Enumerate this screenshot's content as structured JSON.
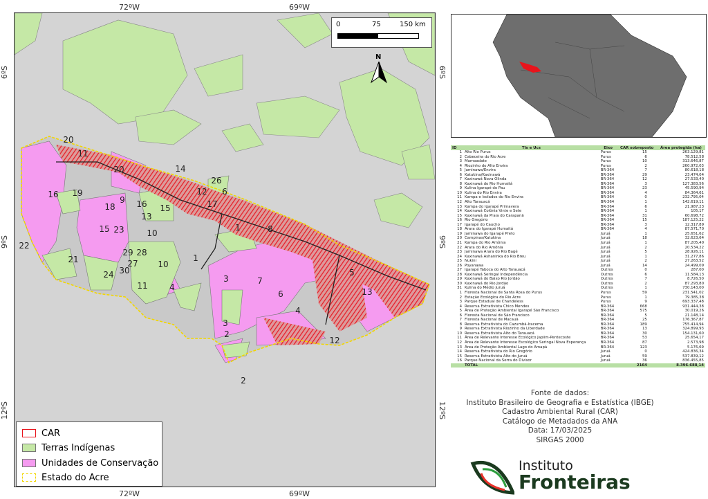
{
  "map": {
    "coords": {
      "top_left": "72ºW",
      "top_right": "69ºW",
      "bottom_left": "72ºW",
      "bottom_right": "69ºW",
      "lat6_left": "6ºS",
      "lat6_right": "6ºS",
      "lat9_left": "9ºS",
      "lat9_right": "9ºS",
      "lat12_left": "12ºS",
      "lat12_right": "12ºS"
    },
    "scale": {
      "zero": "0",
      "mid": "75",
      "end": "150 km"
    },
    "north": "N",
    "labels": [
      "11",
      "20",
      "14",
      "16",
      "19",
      "20",
      "18",
      "9",
      "16",
      "15",
      "12",
      "17",
      "13",
      "23",
      "10",
      "22",
      "15",
      "21",
      "29",
      "28",
      "27",
      "24",
      "30",
      "11",
      "10",
      "4",
      "1",
      "1",
      "8",
      "3",
      "7",
      "6",
      "5",
      "13",
      "4",
      "12",
      "3",
      "2",
      "2",
      "26",
      "6"
    ]
  },
  "legend": {
    "items": [
      {
        "label": "CAR",
        "color": "#ffffff"
      },
      {
        "label": "Terras Indígenas",
        "color": "#c5e8a6"
      },
      {
        "label": "Unidades de Conservação",
        "color": "#f59bf0"
      },
      {
        "label": "Estado do Acre",
        "color": "#f2d600"
      }
    ]
  },
  "table": {
    "headers": [
      "ID",
      "TIs e Ucs",
      "Eixo",
      "CAR sobreposto",
      "Área protegida (ha)"
    ],
    "rows": [
      [
        "1",
        "Alto Rio Purus",
        "Purus",
        "15",
        "263.129,81"
      ],
      [
        "2",
        "Cabeceira do Rio Acre",
        "Purus",
        "6",
        "78.512,58"
      ],
      [
        "3",
        "Mamoadate",
        "Purus",
        "10",
        "313.646,87"
      ],
      [
        "4",
        "Riozinho do Alto Envira",
        "Purus",
        "2",
        "260.972,03"
      ],
      [
        "5",
        "Jaminawa/Envira",
        "BR-364",
        "7",
        "80.618,18"
      ],
      [
        "6",
        "Katukina/Kaxinawá",
        "BR-364",
        "29",
        "23.474,04"
      ],
      [
        "7",
        "Kaxinawá Nova Olinda",
        "BR-364",
        "12",
        "27.533,40"
      ],
      [
        "8",
        "Kaxinawá do Rio Humaitá",
        "BR-364",
        "3",
        "127.383,56"
      ],
      [
        "9",
        "Kulina Igarapé do Pau",
        "BR-364",
        "23",
        "45.590,94"
      ],
      [
        "10",
        "Kulina do Rio Envira",
        "BR-364",
        "4",
        "84.364,61"
      ],
      [
        "11",
        "Kampa e Isolados do Rio Envira",
        "BR-364",
        "0",
        "232.795,04"
      ],
      [
        "12",
        "Alto Tarauacá",
        "BR-364",
        "1",
        "142.619,11"
      ],
      [
        "13",
        "Kampa do Igarapé Primavera",
        "BR-364",
        "6",
        "21.987,23"
      ],
      [
        "14",
        "Kaxinawá Colônia Vinte e Sete",
        "BR-364",
        "1",
        "105,17"
      ],
      [
        "15",
        "Kaxinawá da Praia do Carapanã",
        "BR-364",
        "31",
        "60.698,72"
      ],
      [
        "16",
        "Rio Gregório",
        "BR-364",
        "15",
        "187.125,22"
      ],
      [
        "17",
        "Igarapé do Caucho",
        "BR-364",
        "3",
        "12.317,89"
      ],
      [
        "18",
        "Arara do Igarapé Humaitá",
        "BR-364",
        "4",
        "87.571,70"
      ],
      [
        "19",
        "Jaminawa do Igarapé Preto",
        "Juruá",
        "1",
        "25.651,62"
      ],
      [
        "20",
        "Campinas/Katukina",
        "Juruá",
        "18",
        "32.623,64"
      ],
      [
        "21",
        "Kampa do Rio Amônia",
        "Juruá",
        "1",
        "87.205,40"
      ],
      [
        "22",
        "Arara do Rio Amônia",
        "Juruá",
        "2",
        "20.534,22"
      ],
      [
        "23",
        "Jaminawa Arara do Rio Bagé",
        "Juruá",
        "5",
        "28.926,11"
      ],
      [
        "24",
        "Kaxinawá Ashaninka do Rio Breu",
        "Juruá",
        "1",
        "31.277,86"
      ],
      [
        "25",
        "Nukini",
        "Juruá",
        "2",
        "27.263,52"
      ],
      [
        "26",
        "Poyanawa",
        "Juruá",
        "14",
        "24.499,09"
      ],
      [
        "27",
        "Igarapé Taboca do Alto Tarauacá",
        "Outros",
        "0",
        "287,00"
      ],
      [
        "28",
        "Kaxinawá Seringal Independência",
        "Outros",
        "6",
        "11.584,13"
      ],
      [
        "29",
        "Kaxinawá do Baixo Rio Jordão",
        "Outros",
        "7",
        "8.726,50"
      ],
      [
        "30",
        "Kaxinawá do Rio Jordão",
        "Outros",
        "2",
        "87.293,80"
      ],
      [
        "31",
        "Kulina do Médio Juruá",
        "Outros",
        "1",
        "730.143,00"
      ],
      [
        "1",
        "Floresta Nacional de Santa Rosa do Purus",
        "Purus",
        "59",
        "231.541,02"
      ],
      [
        "2",
        "Estação Ecológica do Rio Acre",
        "Purus",
        "1",
        "79.385,38"
      ],
      [
        "3",
        "Parque Estadual de Chandeless",
        "Purus",
        "9",
        "693.337,48"
      ],
      [
        "4",
        "Reserva Extrativista Chico Mendes",
        "BR-364",
        "668",
        "931.444,38"
      ],
      [
        "5",
        "Área de Proteção Ambiental Igarapé São Francisco",
        "BR-364",
        "575",
        "30.019,26"
      ],
      [
        "6",
        "Floresta Nacional de São Francisco",
        "BR-364",
        "5",
        "21.148,14"
      ],
      [
        "7",
        "Floresta Nacional de Macauã",
        "BR-364",
        "25",
        "176.367,87"
      ],
      [
        "8",
        "Reserva Extrativista do Cazumbá-Iracema",
        "BR-364",
        "189",
        "755.414,94"
      ],
      [
        "9",
        "Reserva Extrativista Riozinho da Liberdade",
        "BR-364",
        "13",
        "324.899,93"
      ],
      [
        "10",
        "Reserva Extrativista Alto do Tarauacá",
        "BR-364",
        "30",
        "154.131,60"
      ],
      [
        "11",
        "Área de Relevante Interesse Ecológico Japiim-Pentecoste",
        "BR-364",
        "53",
        "25.654,17"
      ],
      [
        "12",
        "Área de Relevante Interesse Escológico Seringal Nova Esperança",
        "BR-364",
        "87",
        "2.573,98"
      ],
      [
        "13",
        "Área de Proteção Ambiental Lago do Amapá",
        "BR-364",
        "123",
        "5.176,69"
      ],
      [
        "14",
        "Reserva Extrativista do Rio Gregório",
        "Juruá",
        "0",
        "424.836,34"
      ],
      [
        "15",
        "Reserva Extrativista Alto do Juruá",
        "Juruá",
        "59",
        "537.839,12"
      ],
      [
        "16",
        "Parque Nacional da Serra do Divisor",
        "Juruá",
        "36",
        "836.455,85"
      ]
    ],
    "total": {
      "label": "TOTAL",
      "car": "2164",
      "area": "8.396.688,14"
    }
  },
  "source": {
    "title": "Fonte de dados:",
    "lines": [
      "Instituto Brasileiro de Geografia e Estatística (IBGE)",
      "Cadastro Ambiental Rural (CAR)",
      "Catálogo de Metadados da ANA",
      "Data: 17/03/2025",
      "SIRGAS 2000"
    ]
  },
  "logo": {
    "line1": "Instituto",
    "line2": "Fronteiras"
  },
  "colors": {
    "car": "#e8141c",
    "ti": "#c5e8a6",
    "uc": "#f59bf0",
    "acre": "#f2d600",
    "background": "#d4d4d4",
    "header": "#b8dfa4"
  }
}
